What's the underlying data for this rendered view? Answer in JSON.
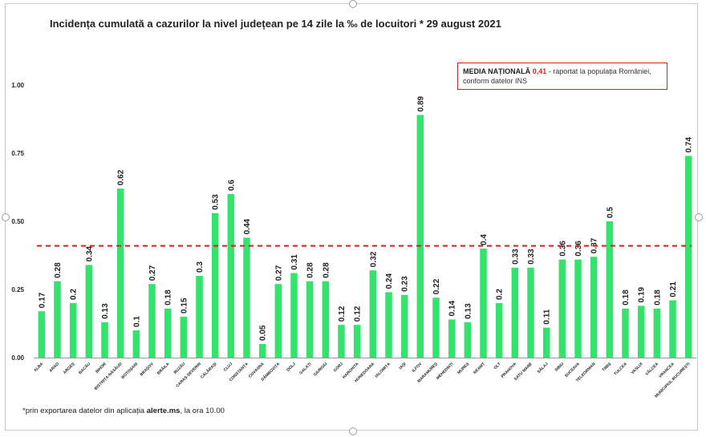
{
  "title": "Incidența cumulată a cazurilor la nivel județean pe 14 zile la ‰ de locuitori * 29 august 2021",
  "footnote": {
    "prefix": "*prin exportarea datelor din aplicația ",
    "source": "alerte.ms",
    "suffix": ", la ora 10.00"
  },
  "media_box": {
    "label": "MEDIA NAȚIONALĂ",
    "value": "0,41",
    "text_line1": " - raportat la populația României,",
    "text_line2": "conform datelor INS"
  },
  "colors": {
    "bar": "#33e36b",
    "reference_line": "#d42020",
    "axis": "#999999",
    "text": "#222222"
  },
  "chart_data": {
    "type": "bar",
    "categories": [
      "ALBA",
      "ARAD",
      "ARGEȘ",
      "BACĂU",
      "BIHOR",
      "BISTRIȚA-NĂSĂUD",
      "BOTOȘANI",
      "BRAȘOV",
      "BRĂILA",
      "BUZĂU",
      "CARAȘ-SEVERIN",
      "CĂLĂRAȘI",
      "CLUJ",
      "CONSTANȚA",
      "COVASNA",
      "DÂMBOVIȚA",
      "DOLJ",
      "GALAȚI",
      "GIURGIU",
      "GORJ",
      "HARGHITA",
      "HUNEDOARA",
      "IALOMIȚA",
      "IAȘI",
      "ILFOV",
      "MARAMUREȘ",
      "MEHEDINȚI",
      "MUREȘ",
      "NEAMȚ",
      "OLT",
      "PRAHOVA",
      "SATU MARE",
      "SĂLAJ",
      "SIBIU",
      "SUCEAVA",
      "TELEORMAN",
      "TIMIȘ",
      "TULCEA",
      "VASLUI",
      "VÂLCEA",
      "VRANCEA",
      "MUNICIPIUL BUCUREȘTI"
    ],
    "values": [
      0.17,
      0.28,
      0.2,
      0.34,
      0.13,
      0.62,
      0.1,
      0.27,
      0.18,
      0.15,
      0.3,
      0.53,
      0.6,
      0.44,
      0.05,
      0.27,
      0.31,
      0.28,
      0.28,
      0.12,
      0.12,
      0.32,
      0.24,
      0.23,
      0.89,
      0.22,
      0.14,
      0.13,
      0.4,
      0.2,
      0.33,
      0.33,
      0.11,
      0.36,
      0.36,
      0.37,
      0.5,
      0.18,
      0.19,
      0.18,
      0.21,
      0.74
    ],
    "value_labels": [
      "0.17",
      "0.28",
      "0.2",
      "0.34",
      "0.13",
      "0.62",
      "0.1",
      "0.27",
      "0.18",
      "0.15",
      "0.3",
      "0.53",
      "0.6",
      "0.44",
      "0.05",
      "0.27",
      "0.31",
      "0.28",
      "0.28",
      "0.12",
      "0.12",
      "0.32",
      "0.24",
      "0.23",
      "0.89",
      "0.22",
      "0.14",
      "0.13",
      "0.4",
      "0.2",
      "0.33",
      "0.33",
      "0.11",
      "0.36",
      "0.36",
      "0.37",
      "0.5",
      "0.18",
      "0.19",
      "0.18",
      "0.21",
      "0.74"
    ],
    "yticks": [
      0,
      0.25,
      0.5,
      0.75,
      1.0
    ],
    "ytick_labels": [
      "0.00",
      "0.25",
      "0.50",
      "0.75",
      "1.00"
    ],
    "ylim": [
      0,
      1.0
    ],
    "reference_line": 0.41,
    "grid": false,
    "xlabel": "",
    "ylabel": ""
  }
}
